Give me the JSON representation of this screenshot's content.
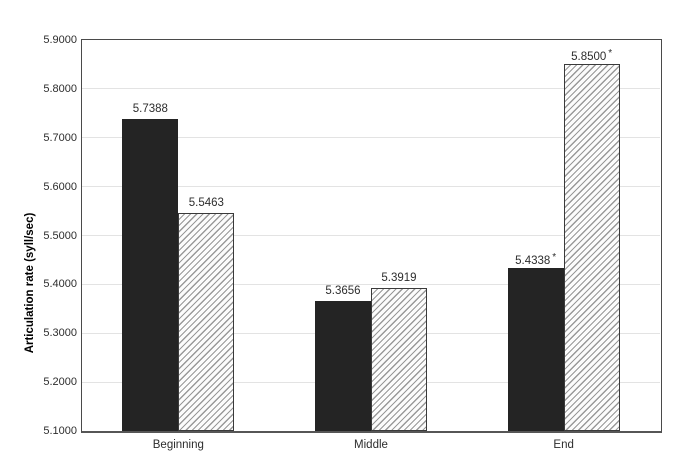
{
  "chart_data": {
    "type": "bar",
    "title": "",
    "ylabel": "Articulation rate (syll/sec)",
    "xlabel": "",
    "categories": [
      "Beginning",
      "Middle",
      "End"
    ],
    "series": [
      {
        "name": "solid-black-series",
        "style": "solid",
        "values": [
          5.7388,
          5.3656,
          5.4338
        ],
        "value_labels": [
          "5.7388",
          "5.3656",
          "5.4338"
        ],
        "sup_marks": [
          "",
          "",
          "*"
        ]
      },
      {
        "name": "diagonal-hatched-series",
        "style": "hatched",
        "values": [
          5.5463,
          5.3919,
          5.85
        ],
        "value_labels": [
          "5.5463",
          "5.3919",
          "5.8500"
        ],
        "sup_marks": [
          "",
          "",
          "*"
        ]
      }
    ],
    "ylim": [
      5.1,
      5.9
    ],
    "ytick_step": 0.1,
    "ytick_labels": [
      "5.1000",
      "5.2000",
      "5.3000",
      "5.4000",
      "5.5000",
      "5.6000",
      "5.7000",
      "5.8000",
      "5.9000"
    ],
    "grid": "horizontal-light",
    "legend": "none"
  },
  "colors": {
    "background": "#ffffff",
    "bar_solid": "#242424",
    "bar_border": "#3a3a3a",
    "hatch_line": "#999999",
    "hatch_bg": "#fcfcfc",
    "gridline": "#e3e3e3",
    "plot_border": "#4a4a4a",
    "axis_bottom": "#565656",
    "text": "#2d2d2d"
  }
}
